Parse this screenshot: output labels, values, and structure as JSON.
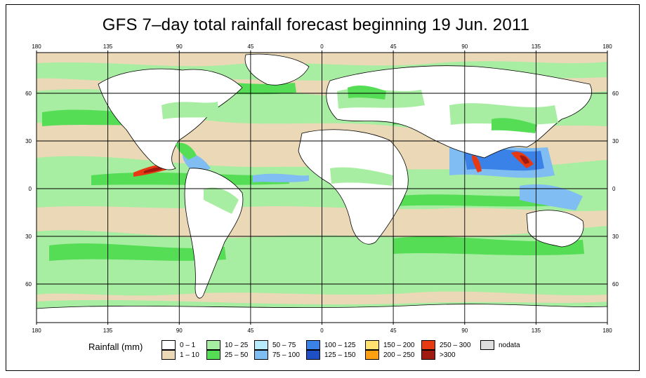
{
  "title": "GFS 7–day total rainfall forecast beginning 19 Jun. 2011",
  "axes": {
    "lon_ticks": [
      "180",
      "135",
      "90",
      "45",
      "0",
      "45",
      "90",
      "135",
      "180"
    ],
    "lat_ticks": [
      "60",
      "30",
      "0",
      "30",
      "60"
    ]
  },
  "legend": {
    "title": "Rainfall (mm)",
    "items": [
      {
        "label": "0 – 1",
        "color": "#ffffff"
      },
      {
        "label": "1 – 10",
        "color": "#ead8b6"
      },
      {
        "label": "10 – 25",
        "color": "#a8eea2"
      },
      {
        "label": "25 – 50",
        "color": "#55dd55"
      },
      {
        "label": "50 – 75",
        "color": "#b8ecfa"
      },
      {
        "label": "75 – 100",
        "color": "#80bdf2"
      },
      {
        "label": "100 – 125",
        "color": "#3b82e8"
      },
      {
        "label": "125 – 150",
        "color": "#1f4fc4"
      },
      {
        "label": "150 – 200",
        "color": "#ffe070"
      },
      {
        "label": "200 – 250",
        "color": "#ffa010"
      },
      {
        "label": "250 – 300",
        "color": "#e83a12"
      },
      {
        "label": ">300",
        "color": "#a01a12"
      },
      {
        "label": "nodata",
        "color": "#dddddd"
      }
    ]
  },
  "colors": {
    "ocean_base": "#ead8b6",
    "land": "#ffffff",
    "grid": "#000000"
  }
}
